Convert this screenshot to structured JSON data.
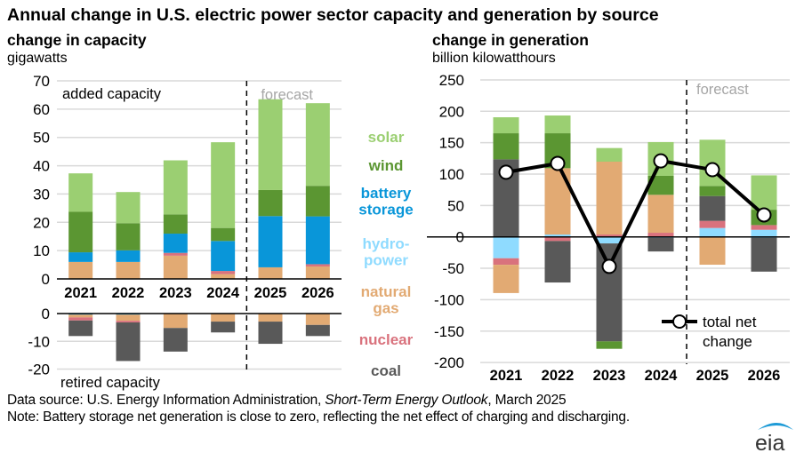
{
  "title": "Annual change in U.S. electric power sector capacity and generation by source",
  "footer": {
    "source_prefix": "Data source: U.S. Energy Information Administration, ",
    "source_italic": "Short-Term Energy Outlook",
    "source_suffix": ", March 2025",
    "note": "Note: Battery storage net generation is close to zero, reflecting the net effect of charging and discharging."
  },
  "logo": {
    "text": "eia",
    "icon": "eia-swoosh-logo"
  },
  "legend": [
    {
      "key": "solar",
      "lines": [
        "solar"
      ],
      "color": "#9BCF72"
    },
    {
      "key": "wind",
      "lines": [
        "wind"
      ],
      "color": "#5B9632"
    },
    {
      "key": "battery",
      "lines": [
        "battery",
        "storage"
      ],
      "color": "#0996D9"
    },
    {
      "key": "hydro",
      "lines": [
        "hydro-",
        "power"
      ],
      "color": "#8FDBFF"
    },
    {
      "key": "gas",
      "lines": [
        "natural",
        "gas"
      ],
      "color": "#E2AA73"
    },
    {
      "key": "nuclear",
      "lines": [
        "nuclear"
      ],
      "color": "#D9727D"
    },
    {
      "key": "coal",
      "lines": [
        "coal"
      ],
      "color": "#595959"
    }
  ],
  "chart_data": [
    {
      "type": "bar",
      "stacked": true,
      "subtitle": "change in capacity",
      "ylabel": "gigawatts",
      "categories": [
        "2021",
        "2022",
        "2023",
        "2024",
        "2025",
        "2026"
      ],
      "forecast_label": "forecast",
      "forecast_start": "2025",
      "panels": [
        {
          "name": "added capacity",
          "ylim": [
            0,
            70
          ],
          "yticks": [
            0,
            10,
            20,
            30,
            40,
            50,
            60,
            70
          ],
          "series": [
            {
              "name": "natural gas",
              "key": "gas",
              "values": [
                6.0,
                6.0,
                8.2,
                1.7,
                4.1,
                4.4
              ]
            },
            {
              "name": "nuclear",
              "key": "nuclear",
              "values": [
                0,
                0,
                1.0,
                1.1,
                0,
                0.8
              ]
            },
            {
              "name": "battery storage",
              "key": "battery",
              "values": [
                3.4,
                4.1,
                6.8,
                10.6,
                18.1,
                16.9
              ]
            },
            {
              "name": "wind",
              "key": "wind",
              "values": [
                14.3,
                9.6,
                6.8,
                4.6,
                9.2,
                10.8
              ]
            },
            {
              "name": "solar",
              "key": "solar",
              "values": [
                13.6,
                11.0,
                19.1,
                30.3,
                32.1,
                29.2
              ]
            }
          ]
        },
        {
          "name": "retired capacity",
          "ylim": [
            -20,
            0
          ],
          "yticks": [
            0,
            -10,
            -20
          ],
          "series": [
            {
              "name": "battery storage",
              "key": "battery",
              "values": [
                -0.4,
                -0.4,
                0,
                0,
                0,
                0
              ]
            },
            {
              "name": "natural gas",
              "key": "gas",
              "values": [
                -1.0,
                -2.2,
                -5.2,
                -2.9,
                -2.9,
                -4.1
              ]
            },
            {
              "name": "nuclear",
              "key": "nuclear",
              "values": [
                -1.1,
                -0.6,
                0,
                0,
                0,
                0
              ]
            },
            {
              "name": "coal",
              "key": "coal",
              "values": [
                -5.6,
                -13.9,
                -8.5,
                -3.9,
                -8.0,
                -4.0
              ]
            }
          ]
        }
      ]
    },
    {
      "type": "bar",
      "stacked": true,
      "subtitle": "change in generation",
      "ylabel": "billion  kilowatthours",
      "categories": [
        "2021",
        "2022",
        "2023",
        "2024",
        "2025",
        "2026"
      ],
      "ylim": [
        -200,
        250
      ],
      "yticks": [
        250,
        200,
        150,
        100,
        50,
        0,
        -50,
        -100,
        -150,
        -200
      ],
      "forecast_label": "forecast",
      "forecast_start": "2025",
      "positive_series": [
        {
          "name": "hydropower",
          "key": "hydro",
          "values": [
            0,
            3.8,
            0,
            0,
            14.2,
            11.3
          ]
        },
        {
          "name": "nuclear",
          "key": "nuclear",
          "values": [
            0,
            0,
            3.8,
            6.6,
            11.3,
            7.5
          ]
        },
        {
          "name": "coal",
          "key": "coal",
          "values": [
            123.5,
            0,
            0,
            0,
            39.6,
            0
          ]
        },
        {
          "name": "natural gas",
          "key": "gas",
          "values": [
            0,
            105.6,
            116,
            60.4,
            0,
            0
          ]
        },
        {
          "name": "wind",
          "key": "wind",
          "values": [
            41.5,
            55.6,
            0,
            30.2,
            16,
            24.5
          ]
        },
        {
          "name": "solar",
          "key": "solar",
          "values": [
            25.5,
            28.3,
            21.7,
            53.8,
            73.6,
            54.7
          ]
        }
      ],
      "negative_series": [
        {
          "name": "battery storage",
          "key": "battery",
          "values": [
            0,
            0,
            0,
            -1.5,
            0,
            -1.5
          ]
        },
        {
          "name": "hydropower",
          "key": "hydro",
          "values": [
            -34,
            0,
            -10.4,
            0,
            0,
            0
          ]
        },
        {
          "name": "nuclear",
          "key": "nuclear",
          "values": [
            -10.4,
            -6.6,
            0,
            0,
            0,
            0
          ]
        },
        {
          "name": "natural gas",
          "key": "gas",
          "values": [
            -45,
            0,
            0,
            0,
            -44.3,
            0
          ]
        },
        {
          "name": "coal",
          "key": "coal",
          "values": [
            0,
            -66,
            -156,
            -21.7,
            0,
            -53.8
          ]
        },
        {
          "name": "wind",
          "key": "wind",
          "values": [
            0,
            0,
            -11.8,
            0,
            0,
            0
          ]
        }
      ],
      "line": {
        "name": "total net change",
        "label_lines": [
          "total net",
          "change"
        ],
        "values": [
          103,
          117,
          -47,
          121,
          107,
          35
        ]
      }
    }
  ]
}
